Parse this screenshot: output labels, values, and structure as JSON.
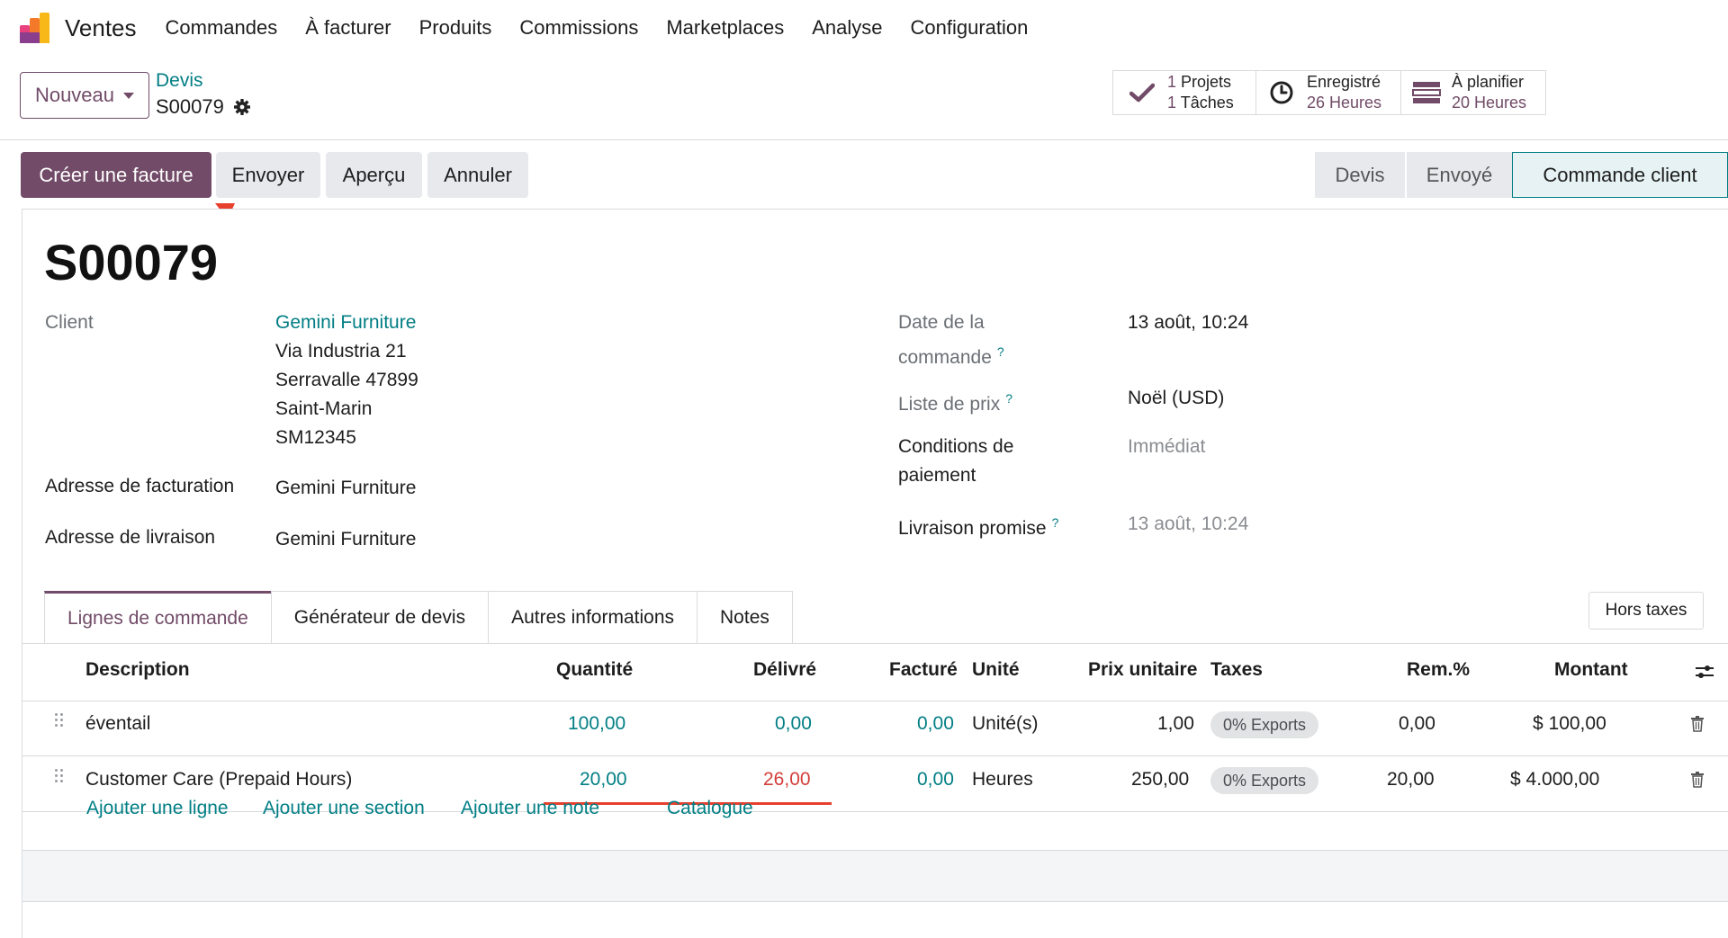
{
  "nav": {
    "app_name": "Ventes",
    "items": [
      "Commandes",
      "À facturer",
      "Produits",
      "Commissions",
      "Marketplaces",
      "Analyse",
      "Configuration"
    ]
  },
  "control": {
    "new_button": "Nouveau",
    "breadcrumb_parent": "Devis",
    "breadcrumb_current": "S00079",
    "stats": {
      "projects": {
        "count": "1",
        "label": "Projets"
      },
      "tasks": {
        "count": "1",
        "label": "Tâches"
      },
      "recorded": {
        "label": "Enregistré",
        "value": "26 Heures"
      },
      "planned": {
        "label": "À planifier",
        "value": "20 Heures"
      }
    }
  },
  "actions": {
    "create_invoice": "Créer une facture",
    "send": "Envoyer",
    "preview": "Aperçu",
    "cancel": "Annuler"
  },
  "status_bar": {
    "steps": [
      "Devis",
      "Envoyé",
      "Commande client"
    ],
    "active": "Commande client"
  },
  "form": {
    "title": "S00079",
    "client_label": "Client",
    "client_name": "Gemini Furniture",
    "client_address": [
      "Via Industria 21",
      "Serravalle 47899",
      "Saint-Marin",
      "SM12345"
    ],
    "invoice_address_label": "Adresse de facturation",
    "invoice_address": "Gemini Furniture",
    "delivery_address_label": "Adresse de livraison",
    "delivery_address": "Gemini Furniture",
    "order_date_label_1": "Date de la",
    "order_date_label_2": "commande",
    "order_date": "13 août, 10:24",
    "pricelist_label": "Liste de prix",
    "pricelist": "Noël (USD)",
    "payment_terms_label_1": "Conditions de",
    "payment_terms_label_2": "paiement",
    "payment_terms": "Immédiat",
    "commitment_label": "Livraison promise",
    "commitment_date": "13 août, 10:24",
    "help_mark": "?"
  },
  "tabs": [
    "Lignes de commande",
    "Générateur de devis",
    "Autres informations",
    "Notes"
  ],
  "tax_toggle": "Hors taxes",
  "table": {
    "headers": {
      "description": "Description",
      "quantity": "Quantité",
      "delivered": "Délivré",
      "invoiced": "Facturé",
      "unit": "Unité",
      "unit_price": "Prix unitaire",
      "taxes": "Taxes",
      "discount": "Rem.%",
      "amount": "Montant"
    },
    "rows": [
      {
        "description": "éventail",
        "quantity": "100,00",
        "delivered": "0,00",
        "invoiced": "0,00",
        "unit": "Unité(s)",
        "unit_price": "1,00",
        "tax": "0% Exports",
        "discount": "0,00",
        "amount": "$ 100,00"
      },
      {
        "description": "Customer Care (Prepaid Hours)",
        "quantity": "20,00",
        "delivered": "26,00",
        "invoiced": "0,00",
        "unit": "Heures",
        "unit_price": "250,00",
        "tax": "0% Exports",
        "discount": "20,00",
        "amount": "$ 4.000,00"
      }
    ],
    "add_line": "Ajouter une ligne",
    "add_section": "Ajouter une section",
    "add_note": "Ajouter une note",
    "catalog": "Catalogue"
  },
  "colors": {
    "primary": "#714b67",
    "link": "#017e84",
    "over": "#d23f3a",
    "annotation": "#e8402f"
  }
}
